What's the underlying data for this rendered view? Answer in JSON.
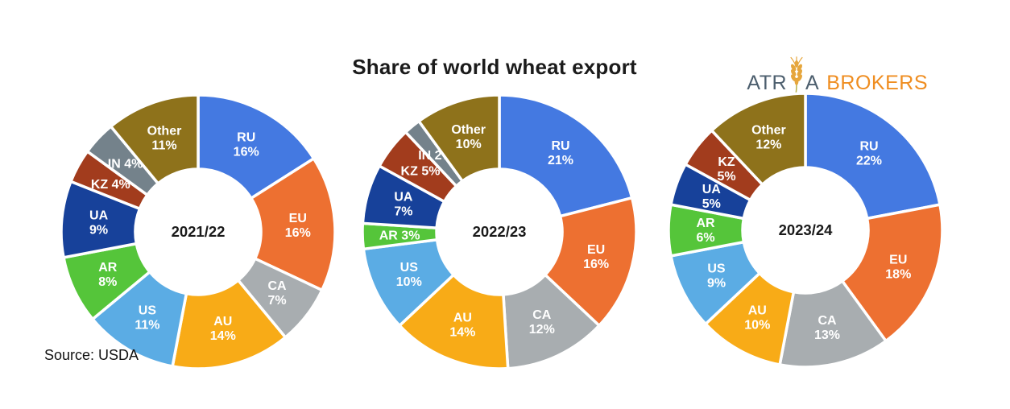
{
  "page": {
    "title": "Share of world wheat export",
    "source_note": "Source: USDA"
  },
  "logo": {
    "text_before_icon": "ATR",
    "text_after_icon": "A",
    "second_word": "BROKERS",
    "icon": "wheat-ear",
    "name_color": "#4d5f6e",
    "brokers_color": "#ef8d20",
    "wheat_color": "#e6a63c",
    "stem_color": "#b9b34a"
  },
  "chart_style": {
    "label_color": "#ffffff",
    "center_label_color": "#1a1a1a",
    "slice_border_color": "#ffffff",
    "slice_border_width": 3.5
  },
  "chart_data": [
    {
      "type": "pie",
      "subtype": "donut",
      "center_label": "2021/22",
      "unit": "%",
      "start_angle_deg": 0,
      "direction": "clockwise",
      "labels_on_slices": true,
      "legend": false,
      "slices": [
        {
          "label": "RU",
          "value": 16,
          "color": "#4479e1",
          "inline_label": false
        },
        {
          "label": "EU",
          "value": 16,
          "color": "#ed7031",
          "inline_label": false
        },
        {
          "label": "CA",
          "value": 7,
          "color": "#a8adb0",
          "inline_label": false
        },
        {
          "label": "AU",
          "value": 14,
          "color": "#f8ab17",
          "inline_label": false
        },
        {
          "label": "US",
          "value": 11,
          "color": "#5bace4",
          "inline_label": false
        },
        {
          "label": "AR",
          "value": 8,
          "color": "#55c53a",
          "inline_label": false
        },
        {
          "label": "UA",
          "value": 9,
          "color": "#17419a",
          "inline_label": false
        },
        {
          "label": "KZ",
          "value": 4,
          "color": "#a23c1d",
          "inline_label": true
        },
        {
          "label": "IN",
          "value": 4,
          "color": "#74828b",
          "inline_label": true
        },
        {
          "label": "Other",
          "value": 11,
          "color": "#8e721b",
          "inline_label": false
        }
      ]
    },
    {
      "type": "pie",
      "subtype": "donut",
      "center_label": "2022/23",
      "unit": "%",
      "start_angle_deg": 0,
      "direction": "clockwise",
      "labels_on_slices": true,
      "legend": false,
      "slices": [
        {
          "label": "RU",
          "value": 21,
          "color": "#4479e1",
          "inline_label": false
        },
        {
          "label": "EU",
          "value": 16,
          "color": "#ed7031",
          "inline_label": false
        },
        {
          "label": "CA",
          "value": 12,
          "color": "#a8adb0",
          "inline_label": false
        },
        {
          "label": "AU",
          "value": 14,
          "color": "#f8ab17",
          "inline_label": false
        },
        {
          "label": "US",
          "value": 10,
          "color": "#5bace4",
          "inline_label": false
        },
        {
          "label": "AR",
          "value": 3,
          "color": "#55c53a",
          "inline_label": true
        },
        {
          "label": "UA",
          "value": 7,
          "color": "#17419a",
          "inline_label": false
        },
        {
          "label": "KZ",
          "value": 5,
          "color": "#a23c1d",
          "inline_label": true
        },
        {
          "label": "IN",
          "value": 2,
          "color": "#74828b",
          "inline_label": true
        },
        {
          "label": "Other",
          "value": 10,
          "color": "#8e721b",
          "inline_label": false
        }
      ]
    },
    {
      "type": "pie",
      "subtype": "donut",
      "center_label": "2023/24",
      "unit": "%",
      "start_angle_deg": 0,
      "direction": "clockwise",
      "labels_on_slices": true,
      "legend": false,
      "slices": [
        {
          "label": "RU",
          "value": 22,
          "color": "#4479e1",
          "inline_label": false
        },
        {
          "label": "EU",
          "value": 18,
          "color": "#ed7031",
          "inline_label": false
        },
        {
          "label": "CA",
          "value": 13,
          "color": "#a8adb0",
          "inline_label": false
        },
        {
          "label": "AU",
          "value": 10,
          "color": "#f8ab17",
          "inline_label": false
        },
        {
          "label": "US",
          "value": 9,
          "color": "#5bace4",
          "inline_label": false
        },
        {
          "label": "AR",
          "value": 6,
          "color": "#55c53a",
          "inline_label": false
        },
        {
          "label": "UA",
          "value": 5,
          "color": "#17419a",
          "inline_label": false
        },
        {
          "label": "KZ",
          "value": 5,
          "color": "#a23c1d",
          "inline_label": false
        },
        {
          "label": "Other",
          "value": 12,
          "color": "#8e721b",
          "inline_label": false
        }
      ]
    }
  ]
}
